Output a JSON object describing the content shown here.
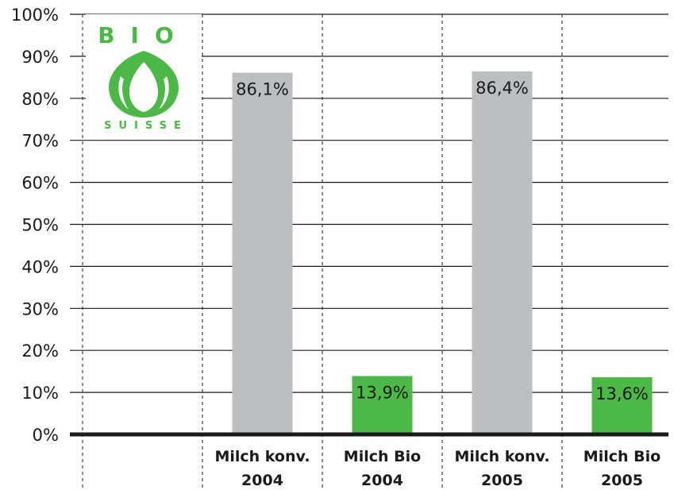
{
  "chart_data": {
    "type": "bar",
    "categories": [
      [
        "Milch konv.",
        "2004"
      ],
      [
        "Milch Bio",
        "2004"
      ],
      [
        "Milch konv.",
        "2005"
      ],
      [
        "Milch Bio",
        "2005"
      ]
    ],
    "values": [
      86.1,
      13.9,
      86.4,
      13.6
    ],
    "data_labels": [
      "86,1%",
      "13,9%",
      "86,4%",
      "13,6%"
    ],
    "bar_colors": [
      "#bdbec0",
      "#4cb848",
      "#bdbec0",
      "#4cb848"
    ],
    "y_ticks": [
      "0%",
      "10%",
      "20%",
      "30%",
      "40%",
      "50%",
      "60%",
      "70%",
      "80%",
      "90%",
      "100%"
    ],
    "ylim": [
      0,
      100
    ],
    "grid": true,
    "title": "",
    "xlabel": "",
    "ylabel": ""
  },
  "logo": {
    "top_text": "BIO",
    "bottom_text": "SUISSE",
    "color": "#4cb848"
  }
}
